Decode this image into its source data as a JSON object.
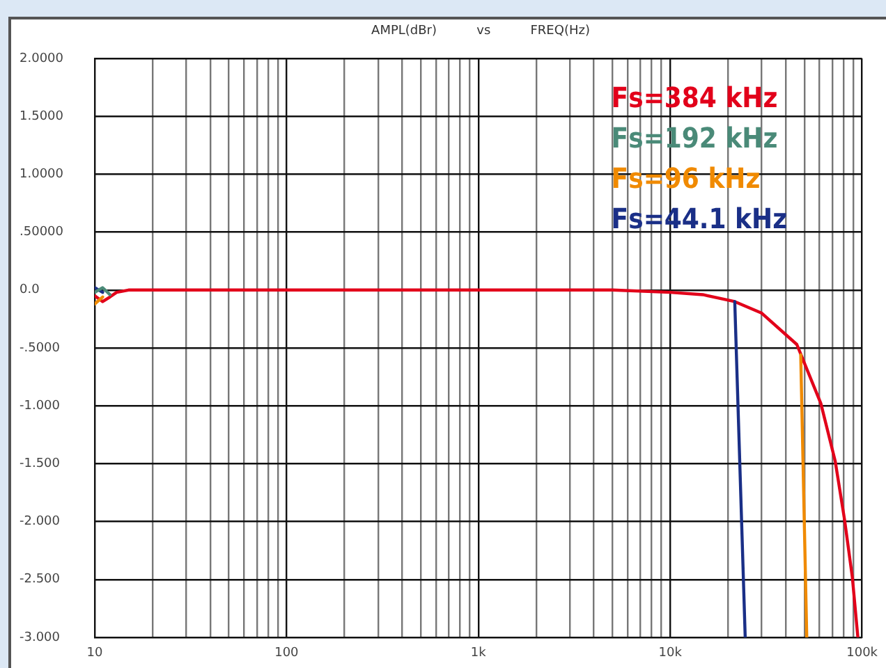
{
  "chart_data": {
    "type": "line",
    "title": "AMPL(dBr)          vs          FREQ(Hz)",
    "log": "x",
    "grid": true,
    "legend": "top right",
    "marker": "none",
    "line_style": "solid",
    "xlim": [
      10,
      100000
    ],
    "xticks": [
      {
        "value": 10,
        "label": "10"
      },
      {
        "value": 20,
        "label": null
      },
      {
        "value": 30,
        "label": null
      },
      {
        "value": 40,
        "label": null
      },
      {
        "value": 50,
        "label": null
      },
      {
        "value": 60,
        "label": null
      },
      {
        "value": 70,
        "label": null
      },
      {
        "value": 80,
        "label": null
      },
      {
        "value": 90,
        "label": null
      },
      {
        "value": 100,
        "label": "100"
      },
      {
        "value": 200,
        "label": null
      },
      {
        "value": 300,
        "label": null
      },
      {
        "value": 400,
        "label": null
      },
      {
        "value": 500,
        "label": null
      },
      {
        "value": 600,
        "label": null
      },
      {
        "value": 700,
        "label": null
      },
      {
        "value": 800,
        "label": null
      },
      {
        "value": 900,
        "label": null
      },
      {
        "value": 1000,
        "label": "1k"
      },
      {
        "value": 2000,
        "label": null
      },
      {
        "value": 3000,
        "label": null
      },
      {
        "value": 4000,
        "label": null
      },
      {
        "value": 5000,
        "label": null
      },
      {
        "value": 6000,
        "label": null
      },
      {
        "value": 7000,
        "label": null
      },
      {
        "value": 8000,
        "label": null
      },
      {
        "value": 9000,
        "label": null
      },
      {
        "value": 10000,
        "label": "10k"
      },
      {
        "value": 20000,
        "label": null
      },
      {
        "value": 30000,
        "label": null
      },
      {
        "value": 40000,
        "label": null
      },
      {
        "value": 50000,
        "label": null
      },
      {
        "value": 60000,
        "label": null
      },
      {
        "value": 70000,
        "label": null
      },
      {
        "value": 80000,
        "label": null
      },
      {
        "value": 90000,
        "label": null
      },
      {
        "value": 100000,
        "label": "100k"
      }
    ],
    "ylim": [
      -3,
      2
    ],
    "yticks": [
      {
        "value": 2,
        "label": "2.0000"
      },
      {
        "value": 1.5,
        "label": "1.5000"
      },
      {
        "value": 1,
        "label": "1.0000"
      },
      {
        "value": 0.5,
        "label": ".50000"
      },
      {
        "value": 0,
        "label": "0.0"
      },
      {
        "value": -0.5,
        "label": "-.5000"
      },
      {
        "value": -1,
        "label": "-1.000"
      },
      {
        "value": -1.5,
        "label": "-1.500"
      },
      {
        "value": -2,
        "label": "-2.000"
      },
      {
        "value": -2.5,
        "label": "-2.500"
      },
      {
        "value": -3,
        "label": "-3.000"
      }
    ],
    "series": [
      {
        "name": "Fs=384 kHz",
        "color": "#e2001a",
        "x": [
          10,
          11,
          12,
          13,
          15,
          20,
          50,
          100,
          1000,
          5000,
          10000,
          14800,
          21700,
          30000,
          45700,
          61000,
          72500,
          81000,
          89000,
          95000
        ],
        "values": [
          -0.05,
          -0.1,
          -0.06,
          -0.02,
          0,
          0,
          0,
          0,
          0,
          0,
          -0.02,
          -0.04,
          -0.1,
          -0.2,
          -0.47,
          -0.98,
          -1.48,
          -1.98,
          -2.48,
          -2.99
        ]
      },
      {
        "name": "Fs=192 kHz",
        "color": "#4a8a78",
        "x": [
          10,
          11,
          12
        ],
        "values": [
          -0.02,
          0.02,
          -0.04
        ]
      },
      {
        "name": "Fs=96 kHz",
        "color": "#f08a00",
        "x": [
          10,
          11,
          12,
          47900,
          51500
        ],
        "values": [
          -0.12,
          -0.06,
          null,
          -0.56,
          -3
        ]
      },
      {
        "name": "Fs=44.1 kHz",
        "color": "#1a2f87",
        "x": [
          10,
          11,
          12,
          21700,
          24600
        ],
        "values": [
          0.02,
          -0.02,
          null,
          -0.1,
          -3
        ]
      }
    ]
  }
}
